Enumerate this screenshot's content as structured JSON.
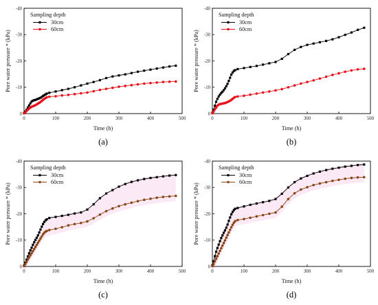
{
  "chart_data": [
    {
      "type": "line",
      "caption": "(a)",
      "xlabel": "Time (h)",
      "ylabel": "Pore water pressure * (kPa)",
      "xlim": [
        0,
        500
      ],
      "ylim": [
        0,
        -40
      ],
      "xticks": [
        "0",
        "100",
        "200",
        "300",
        "400",
        "500"
      ],
      "yticks": [
        "0",
        "-10",
        "-20",
        "-30",
        "-40"
      ],
      "legend_title": "Sampling depth",
      "legend_position": "top-left",
      "grid": false,
      "shading": false,
      "series": [
        {
          "name": "30cm",
          "color": "#000000",
          "marker": "square",
          "x": [
            0,
            4,
            8,
            12,
            16,
            20,
            24,
            28,
            32,
            36,
            40,
            44,
            48,
            52,
            56,
            60,
            64,
            68,
            72,
            80,
            100,
            120,
            140,
            160,
            180,
            200,
            220,
            240,
            260,
            280,
            300,
            320,
            340,
            360,
            380,
            400,
            420,
            440,
            460,
            480
          ],
          "y": [
            -0.2,
            -0.8,
            -1.5,
            -2.3,
            -3.1,
            -3.9,
            -4.6,
            -4.9,
            -5.1,
            -5.2,
            -5.4,
            -5.6,
            -5.8,
            -6.0,
            -6.3,
            -6.7,
            -7.0,
            -7.3,
            -7.6,
            -7.9,
            -8.4,
            -8.9,
            -9.4,
            -10.0,
            -10.7,
            -11.4,
            -12.0,
            -12.7,
            -13.5,
            -14.1,
            -14.5,
            -14.9,
            -15.4,
            -15.9,
            -16.3,
            -16.7,
            -17.1,
            -17.5,
            -17.9,
            -18.2
          ]
        },
        {
          "name": "60cm",
          "color": "#e8101a",
          "marker": "circle",
          "x": [
            0,
            4,
            8,
            12,
            16,
            20,
            24,
            28,
            32,
            36,
            40,
            44,
            48,
            52,
            56,
            60,
            64,
            68,
            72,
            80,
            100,
            120,
            140,
            160,
            180,
            200,
            220,
            240,
            260,
            280,
            300,
            320,
            340,
            360,
            380,
            400,
            420,
            440,
            460,
            480
          ],
          "y": [
            -0.1,
            -0.5,
            -1.0,
            -1.5,
            -1.9,
            -2.3,
            -2.6,
            -2.8,
            -3.0,
            -3.2,
            -3.5,
            -3.8,
            -4.1,
            -4.4,
            -4.8,
            -5.2,
            -5.6,
            -5.9,
            -6.2,
            -6.4,
            -6.6,
            -6.9,
            -7.1,
            -7.4,
            -7.7,
            -8.0,
            -8.5,
            -9.0,
            -9.4,
            -9.8,
            -10.2,
            -10.5,
            -10.8,
            -11.1,
            -11.4,
            -11.6,
            -11.8,
            -12.0,
            -12.1,
            -12.2
          ]
        }
      ]
    },
    {
      "type": "line",
      "caption": "(b)",
      "xlabel": "Time (h)",
      "ylabel": "Pore water pressure * (kPa)",
      "xlim": [
        0,
        500
      ],
      "ylim": [
        0,
        -40
      ],
      "xticks": [
        "0",
        "100",
        "200",
        "300",
        "400",
        "500"
      ],
      "yticks": [
        "0",
        "-10",
        "-20",
        "-30",
        "-40"
      ],
      "legend_title": "Sampling depth",
      "legend_position": "top-left",
      "grid": false,
      "shading": false,
      "series": [
        {
          "name": "30cm",
          "color": "#000000",
          "marker": "square",
          "x": [
            0,
            4,
            8,
            12,
            16,
            20,
            24,
            28,
            32,
            36,
            40,
            44,
            48,
            52,
            56,
            60,
            64,
            68,
            72,
            80,
            100,
            120,
            140,
            160,
            180,
            200,
            220,
            240,
            260,
            280,
            300,
            320,
            340,
            360,
            380,
            400,
            420,
            440,
            460,
            480
          ],
          "y": [
            -0.3,
            -1.5,
            -3.0,
            -4.5,
            -5.6,
            -6.5,
            -7.2,
            -7.8,
            -8.3,
            -8.9,
            -9.6,
            -10.4,
            -11.3,
            -12.4,
            -13.6,
            -14.8,
            -15.6,
            -16.2,
            -16.5,
            -16.9,
            -17.3,
            -17.7,
            -18.1,
            -18.6,
            -19.1,
            -19.6,
            -20.8,
            -22.6,
            -24.2,
            -25.3,
            -26.1,
            -26.6,
            -27.1,
            -27.6,
            -28.2,
            -29.0,
            -29.9,
            -30.8,
            -31.8,
            -32.6
          ]
        },
        {
          "name": "60cm",
          "color": "#e8101a",
          "marker": "circle",
          "x": [
            0,
            4,
            8,
            12,
            16,
            20,
            24,
            28,
            32,
            36,
            40,
            44,
            48,
            52,
            56,
            60,
            64,
            68,
            72,
            80,
            100,
            120,
            140,
            160,
            180,
            200,
            220,
            240,
            260,
            280,
            300,
            320,
            340,
            360,
            380,
            400,
            420,
            440,
            460,
            480
          ],
          "y": [
            -0.1,
            -0.8,
            -1.6,
            -2.3,
            -3.0,
            -3.4,
            -3.6,
            -3.7,
            -3.8,
            -3.9,
            -4.0,
            -4.2,
            -4.4,
            -4.6,
            -4.9,
            -5.2,
            -5.6,
            -6.0,
            -6.3,
            -6.5,
            -6.8,
            -7.2,
            -7.6,
            -8.0,
            -8.4,
            -8.8,
            -9.3,
            -10.0,
            -10.7,
            -11.4,
            -12.0,
            -12.6,
            -13.3,
            -14.0,
            -14.7,
            -15.3,
            -15.9,
            -16.4,
            -16.8,
            -17.0
          ]
        }
      ]
    },
    {
      "type": "line",
      "caption": "(c)",
      "xlabel": "Time (h)",
      "ylabel": "Pore water pressure * (kPa)",
      "xlim": [
        0,
        500
      ],
      "ylim": [
        0,
        -40
      ],
      "xticks": [
        "0",
        "100",
        "200",
        "300",
        "400",
        "500"
      ],
      "yticks": [
        "0",
        "-10",
        "-20",
        "-30",
        "-40"
      ],
      "legend_title": "Sampling depth",
      "legend_position": "top-left",
      "grid": false,
      "shading": true,
      "series": [
        {
          "name": "30cm",
          "color": "#000000",
          "marker": "square",
          "x": [
            0,
            4,
            8,
            12,
            16,
            20,
            24,
            28,
            32,
            36,
            40,
            44,
            48,
            52,
            56,
            60,
            64,
            68,
            72,
            80,
            100,
            120,
            140,
            160,
            180,
            200,
            220,
            240,
            260,
            280,
            300,
            320,
            340,
            360,
            380,
            400,
            420,
            440,
            460,
            480
          ],
          "y": [
            -0.3,
            -1.4,
            -2.6,
            -3.8,
            -5.0,
            -6.1,
            -7.1,
            -8.2,
            -9.2,
            -10.1,
            -10.9,
            -11.8,
            -12.9,
            -14.0,
            -15.1,
            -16.1,
            -16.9,
            -17.5,
            -17.9,
            -18.4,
            -18.8,
            -19.2,
            -19.6,
            -20.1,
            -20.5,
            -21.6,
            -23.6,
            -25.9,
            -27.7,
            -29.0,
            -30.3,
            -31.3,
            -32.1,
            -32.7,
            -33.2,
            -33.6,
            -33.9,
            -34.2,
            -34.5,
            -34.7
          ]
        },
        {
          "name": "60cm",
          "color": "#8b4513",
          "marker": "circle",
          "x": [
            0,
            4,
            8,
            12,
            16,
            20,
            24,
            28,
            32,
            36,
            40,
            44,
            48,
            52,
            56,
            60,
            64,
            68,
            72,
            80,
            100,
            120,
            140,
            160,
            180,
            200,
            220,
            240,
            260,
            280,
            300,
            320,
            340,
            360,
            380,
            400,
            420,
            440,
            460,
            480
          ],
          "y": [
            -0.1,
            -0.9,
            -1.7,
            -2.6,
            -3.4,
            -4.2,
            -5.0,
            -5.8,
            -6.6,
            -7.4,
            -8.2,
            -9.0,
            -9.8,
            -10.6,
            -11.4,
            -12.2,
            -12.8,
            -13.2,
            -13.5,
            -13.8,
            -14.3,
            -14.9,
            -15.6,
            -16.1,
            -16.5,
            -17.1,
            -18.3,
            -19.7,
            -21.0,
            -22.0,
            -22.9,
            -23.6,
            -24.2,
            -24.8,
            -25.3,
            -25.7,
            -26.1,
            -26.4,
            -26.6,
            -26.8
          ]
        }
      ]
    },
    {
      "type": "line",
      "caption": "(d)",
      "xlabel": "Time (h)",
      "ylabel": "Pore water pressure * (kPa)",
      "xlim": [
        0,
        500
      ],
      "ylim": [
        0,
        -40
      ],
      "xticks": [
        "0",
        "100",
        "200",
        "300",
        "400",
        "500"
      ],
      "yticks": [
        "0",
        "-10",
        "-20",
        "-30",
        "-40"
      ],
      "legend_title": "Sampling depth",
      "legend_position": "top-left",
      "grid": false,
      "shading": true,
      "series": [
        {
          "name": "30cm",
          "color": "#000000",
          "marker": "square",
          "x": [
            0,
            4,
            8,
            12,
            16,
            20,
            24,
            28,
            32,
            36,
            40,
            44,
            48,
            52,
            56,
            60,
            64,
            68,
            72,
            80,
            100,
            120,
            140,
            160,
            180,
            200,
            220,
            240,
            260,
            280,
            300,
            320,
            340,
            360,
            380,
            400,
            420,
            440,
            460,
            480
          ],
          "y": [
            -0.4,
            -2.0,
            -3.9,
            -5.6,
            -7.0,
            -8.3,
            -9.6,
            -10.8,
            -11.8,
            -12.8,
            -13.7,
            -14.7,
            -15.9,
            -17.3,
            -18.6,
            -19.8,
            -20.7,
            -21.4,
            -21.9,
            -22.2,
            -22.8,
            -23.4,
            -23.9,
            -24.4,
            -24.9,
            -25.6,
            -27.6,
            -30.0,
            -32.0,
            -33.4,
            -34.4,
            -35.3,
            -36.0,
            -36.6,
            -37.1,
            -37.5,
            -37.9,
            -38.2,
            -38.5,
            -38.7
          ]
        },
        {
          "name": "60cm",
          "color": "#8b4513",
          "marker": "circle",
          "x": [
            0,
            4,
            8,
            12,
            16,
            20,
            24,
            28,
            32,
            36,
            40,
            44,
            48,
            52,
            56,
            60,
            64,
            68,
            72,
            80,
            100,
            120,
            140,
            160,
            180,
            200,
            220,
            240,
            260,
            280,
            300,
            320,
            340,
            360,
            380,
            400,
            420,
            440,
            460,
            480
          ],
          "y": [
            -0.1,
            -0.9,
            -1.9,
            -2.9,
            -3.9,
            -4.9,
            -5.9,
            -6.9,
            -7.9,
            -8.9,
            -9.9,
            -10.9,
            -11.9,
            -12.9,
            -13.9,
            -14.9,
            -15.8,
            -16.6,
            -17.2,
            -17.6,
            -18.0,
            -18.5,
            -19.0,
            -19.5,
            -20.0,
            -20.5,
            -22.7,
            -25.6,
            -27.8,
            -29.2,
            -30.1,
            -30.9,
            -31.5,
            -32.0,
            -32.5,
            -32.9,
            -33.3,
            -33.6,
            -33.8,
            -33.9
          ]
        }
      ]
    }
  ]
}
